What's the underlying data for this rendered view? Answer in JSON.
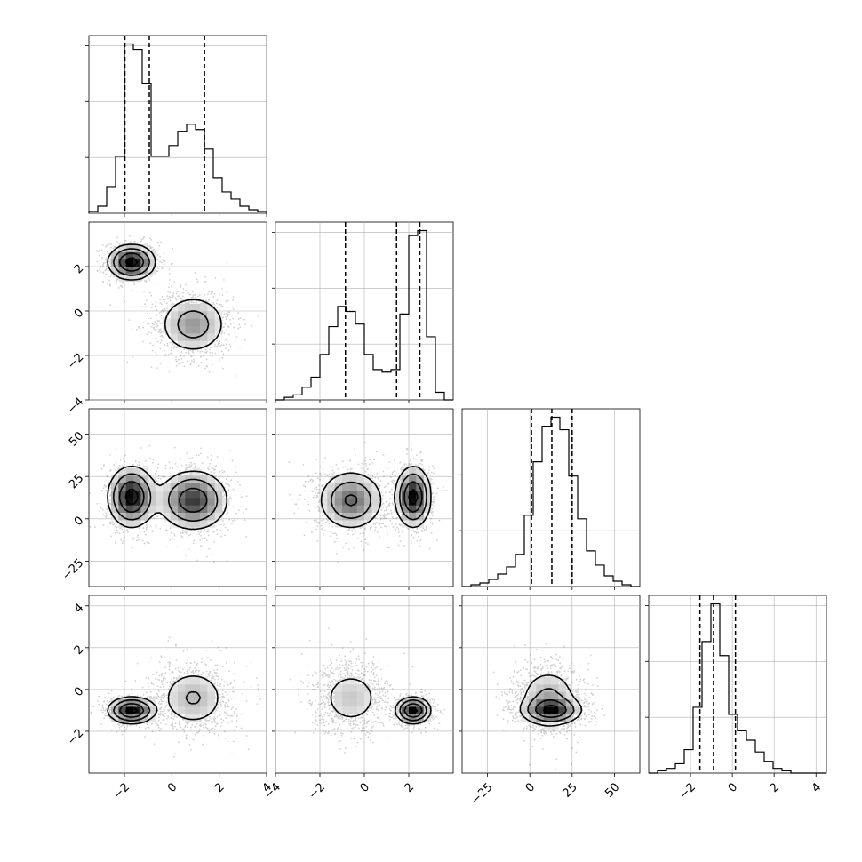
{
  "chart_data": {
    "type": "corner",
    "parameters": [
      {
        "range": [
          -3.5,
          4.0
        ],
        "ticks": [
          -2,
          0,
          2,
          4
        ],
        "tick_labels": [
          "−2",
          "0",
          "2",
          "4"
        ],
        "quantiles": [
          -1.98,
          -0.95,
          1.38
        ],
        "hist": {
          "edges": [
            -3.5,
            -3.125,
            -2.75,
            -2.375,
            -2.0,
            -1.625,
            -1.25,
            -0.875,
            -0.5,
            -0.125,
            0.25,
            0.625,
            1.0,
            1.375,
            1.75,
            2.125,
            2.5,
            2.875,
            3.25,
            3.625,
            4.0
          ],
          "counts": [
            1,
            4,
            15,
            32,
            95,
            92,
            73,
            32,
            32,
            38,
            46,
            50,
            47,
            36,
            20,
            12,
            8,
            4,
            2,
            1
          ]
        },
        "modes": [
          {
            "center": -1.6,
            "sd": 0.5
          },
          {
            "center": 0.9,
            "sd": 0.7
          }
        ]
      },
      {
        "range": [
          -4.0,
          4.0
        ],
        "ticks": [
          -4,
          -2,
          0,
          2
        ],
        "tick_labels": [
          "−4",
          "−2",
          "0",
          "2"
        ],
        "quantiles": [
          -0.85,
          1.45,
          2.5
        ],
        "hist": {
          "edges": [
            -4.0,
            -3.6,
            -3.2,
            -2.8,
            -2.4,
            -2.0,
            -1.6,
            -1.2,
            -0.8,
            -0.4,
            0.0,
            0.4,
            0.8,
            1.2,
            1.6,
            2.0,
            2.4,
            2.8,
            3.2,
            3.6,
            4.0
          ],
          "counts": [
            0,
            1,
            2,
            5,
            9,
            18,
            29,
            37,
            35,
            30,
            18,
            12,
            11,
            12,
            34,
            65,
            67,
            25,
            3,
            0
          ]
        },
        "modes": [
          {
            "center": 2.1,
            "sd": 0.4
          },
          {
            "center": -0.5,
            "sd": 0.7
          }
        ]
      },
      {
        "range": [
          -40,
          65
        ],
        "ticks": [
          -25,
          0,
          25,
          50
        ],
        "tick_labels": [
          "−25",
          "0",
          "25",
          "50"
        ],
        "quantiles": [
          1,
          13,
          25
        ],
        "hist": {
          "edges": [
            -40.0,
            -34.75,
            -29.5,
            -24.25,
            -19.0,
            -13.75,
            -8.5,
            -3.25,
            2.0,
            7.25,
            12.5,
            17.75,
            23.0,
            28.25,
            33.5,
            38.75,
            44.0,
            49.25,
            54.5,
            59.75,
            65.0
          ],
          "counts": [
            0,
            1,
            2,
            4,
            7,
            11,
            18,
            40,
            70,
            90,
            95,
            88,
            62,
            38,
            20,
            12,
            6,
            3,
            1,
            0
          ]
        },
        "modes": [
          {
            "center": 13,
            "sd": 9
          },
          {
            "center": 11,
            "sd": 9
          }
        ]
      },
      {
        "range": [
          -4.0,
          4.5
        ],
        "ticks": [
          -2,
          0,
          2,
          4
        ],
        "tick_labels": [
          "−2",
          "0",
          "2",
          "4"
        ],
        "quantiles": [
          -1.55,
          -0.9,
          0.15
        ],
        "hist": {
          "edges": [
            -4.0,
            -3.575,
            -3.15,
            -2.725,
            -2.3,
            -1.875,
            -1.45,
            -1.025,
            -0.6,
            -0.175,
            0.25,
            0.675,
            1.1,
            1.525,
            1.95,
            2.375,
            2.8,
            3.225,
            3.65,
            4.075,
            4.5
          ],
          "counts": [
            0,
            1,
            2,
            4,
            10,
            28,
            56,
            72,
            50,
            25,
            18,
            14,
            9,
            5,
            2,
            1,
            0,
            0,
            0,
            0
          ]
        },
        "modes": [
          {
            "center": -1.0,
            "sd": 0.3
          },
          {
            "center": -0.5,
            "sd": 0.7
          }
        ]
      }
    ],
    "pairs": [
      {
        "row": 1,
        "col": 0,
        "components": [
          {
            "mx": -1.7,
            "my": 2.2,
            "sx": 0.5,
            "sy": 0.4,
            "rho": 0.0,
            "weight": 0.45
          },
          {
            "mx": 0.9,
            "my": -0.6,
            "sx": 0.75,
            "sy": 0.7,
            "rho": 0.0,
            "weight": 0.55
          }
        ]
      },
      {
        "row": 2,
        "col": 0,
        "components": [
          {
            "mx": -1.7,
            "my": 13,
            "sx": 0.5,
            "sy": 9,
            "rho": 0.0,
            "weight": 0.45
          },
          {
            "mx": 0.9,
            "my": 11,
            "sx": 0.75,
            "sy": 9,
            "rho": 0.0,
            "weight": 0.55
          }
        ]
      },
      {
        "row": 2,
        "col": 1,
        "components": [
          {
            "mx": 2.2,
            "my": 13,
            "sx": 0.4,
            "sy": 9,
            "rho": 0.0,
            "weight": 0.45
          },
          {
            "mx": -0.6,
            "my": 11,
            "sx": 0.75,
            "sy": 9,
            "rho": 0.0,
            "weight": 0.55
          }
        ]
      },
      {
        "row": 3,
        "col": 0,
        "components": [
          {
            "mx": -1.7,
            "my": -1.0,
            "sx": 0.5,
            "sy": 0.32,
            "rho": 0.0,
            "weight": 0.45
          },
          {
            "mx": 0.9,
            "my": -0.4,
            "sx": 0.75,
            "sy": 0.75,
            "rho": 0.0,
            "weight": 0.55
          }
        ]
      },
      {
        "row": 3,
        "col": 1,
        "components": [
          {
            "mx": 2.2,
            "my": -1.0,
            "sx": 0.4,
            "sy": 0.32,
            "rho": 0.0,
            "weight": 0.45
          },
          {
            "mx": -0.6,
            "my": -0.4,
            "sx": 0.75,
            "sy": 0.75,
            "rho": 0.0,
            "weight": 0.55
          }
        ]
      },
      {
        "row": 3,
        "col": 2,
        "components": [
          {
            "mx": 13,
            "my": -1.0,
            "sx": 9,
            "sy": 0.32,
            "rho": 0.0,
            "weight": 0.45
          },
          {
            "mx": 11,
            "my": -0.4,
            "sx": 9,
            "sy": 0.75,
            "rho": 0.0,
            "weight": 0.55
          }
        ]
      }
    ],
    "contour_levels_sigma": [
      0.5,
      1.0,
      1.5,
      2.0
    ],
    "grid": true,
    "title": "",
    "series_colors": {
      "line": "#000000",
      "density": "#000000",
      "grid": "#b0b0b0"
    }
  }
}
